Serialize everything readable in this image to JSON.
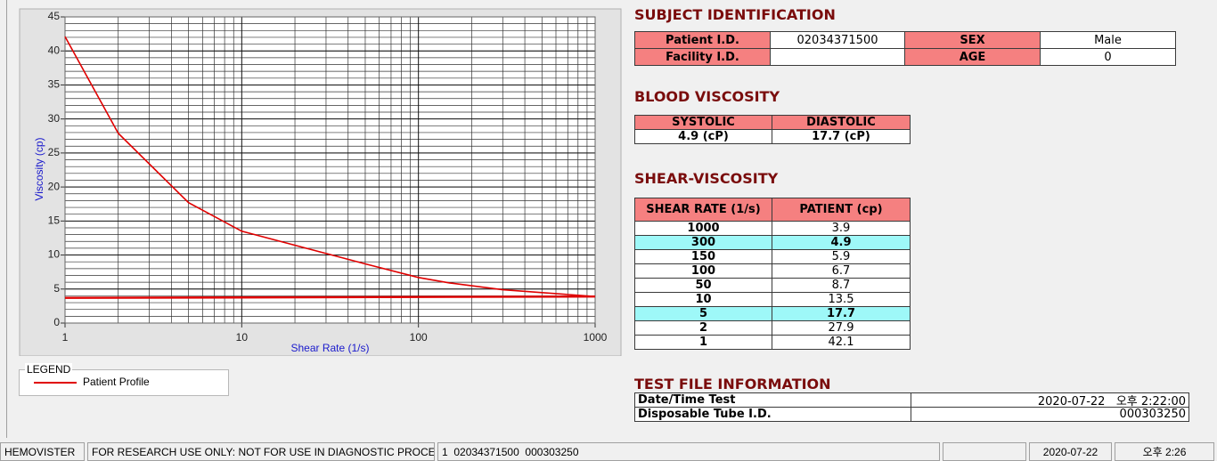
{
  "chart_data": {
    "type": "line",
    "x_label": "Shear Rate (1/s)",
    "y_label": "Viscosity (cp)",
    "log_x": true,
    "grid": true,
    "xlim": [
      1,
      1000
    ],
    "ylim": [
      0,
      45
    ],
    "xticks": [
      1,
      10,
      100,
      1000
    ],
    "yticks": [
      0,
      5,
      10,
      15,
      20,
      25,
      30,
      35,
      40,
      45
    ],
    "legend_title": "LEGEND",
    "series": [
      {
        "name": "Patient Profile",
        "color": "#e00000",
        "x": [
          1000,
          300,
          150,
          100,
          50,
          10,
          5,
          2,
          1
        ],
        "values": [
          3.9,
          4.9,
          5.9,
          6.7,
          8.7,
          13.5,
          17.7,
          27.9,
          42.1
        ]
      },
      {
        "color": "#e00000",
        "x": [
          1,
          1000
        ],
        "values": [
          3.7,
          3.9
        ]
      }
    ]
  },
  "subject": {
    "title": "SUBJECT IDENTIFICATION",
    "rows": [
      [
        "Patient I.D.",
        "02034371500",
        "SEX",
        "Male"
      ],
      [
        "Facility I.D.",
        null,
        "AGE",
        "0"
      ]
    ]
  },
  "blood_viscosity": {
    "title": "BLOOD VISCOSITY",
    "headers": [
      "SYSTOLIC",
      "DIASTOLIC"
    ],
    "values": [
      "4.9 (cP)",
      "17.7 (cP)"
    ]
  },
  "shear_viscosity": {
    "title": "SHEAR-VISCOSITY",
    "headers": [
      "SHEAR RATE (1/s)",
      "PATIENT (cp)"
    ],
    "highlight_rows": [
      1,
      6
    ],
    "highlight_color": "#9ef8f8"
  },
  "test_file": {
    "title": "TEST FILE INFORMATION",
    "rows": [
      [
        "Date/Time Test",
        "2020-07-22   오후 2:22:00"
      ],
      [
        "Disposable Tube I.D.",
        "000303250"
      ]
    ]
  },
  "status_bar": [
    "HEMOVISTER",
    "FOR RESEARCH USE ONLY: NOT FOR USE IN DIAGNOSTIC PROCEDURES",
    "1  02034371500  000303250",
    null,
    "2020-07-22",
    "오후 2:26"
  ]
}
